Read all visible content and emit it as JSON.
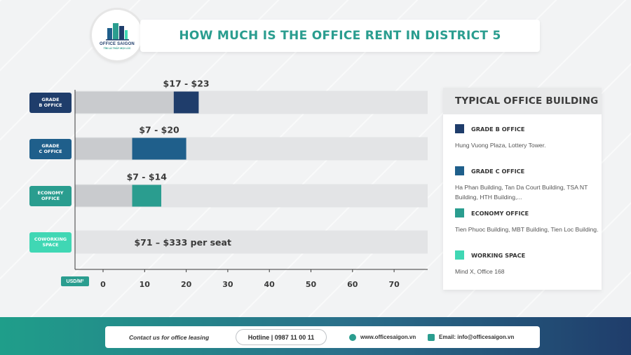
{
  "title": "HOW MUCH IS THE OFFICE RENT IN DISTRICT 5",
  "logo": {
    "name": "OFFICE SAIGON",
    "tagline": "TÌM LÀ THẤY MỌI LÚC"
  },
  "chart_data": {
    "type": "bar",
    "orientation": "horizontal-range",
    "unit": "USD/M²",
    "xlim": [
      -7,
      78
    ],
    "xticks": [
      0,
      10,
      20,
      30,
      40,
      50,
      60,
      70
    ],
    "categories": [
      {
        "label": "GRADE\nB OFFICE",
        "min": 17,
        "max": 23,
        "value_label": "$17 - $23",
        "color": "#1f3d6b"
      },
      {
        "label": "GRADE\nC OFFICE",
        "min": 7,
        "max": 20,
        "value_label": "$7 - $20",
        "color": "#1f5f8b"
      },
      {
        "label": "ECONOMY\nOFFICE",
        "min": 7,
        "max": 14,
        "value_label": "$7 - $14",
        "color": "#2a9d8f"
      },
      {
        "label": "COWORKING\nSPACE",
        "min": null,
        "max": null,
        "value_label": "$71 – $333 per seat",
        "color": "#40d7b4"
      }
    ]
  },
  "legend": {
    "header": "TYPICAL OFFICE BUILDING",
    "items": [
      {
        "title": "GRADE B OFFICE",
        "desc": "Hung Vuong Plaza, Lottery Tower.",
        "color": "#1f3d6b"
      },
      {
        "title": "GRADE C OFFICE",
        "desc": "Ha Phan Building, Tan Da Court Building, TSA NT Building, HTH Building,...",
        "color": "#1f5f8b"
      },
      {
        "title": "ECONOMY OFFICE",
        "desc": "Tien Phuoc Building, MBT Building, Tien Loc Building.",
        "color": "#2a9d8f"
      },
      {
        "title": "WORKING SPACE",
        "desc": "Mind X, Office 168",
        "color": "#40d7b4"
      }
    ]
  },
  "footer": {
    "contact": "Contact us for office leasing",
    "hotline": "Hotline | 0987 11 00 11",
    "website": "www.officesaigon.vn",
    "email": "Email: info@officesaigon.vn"
  }
}
